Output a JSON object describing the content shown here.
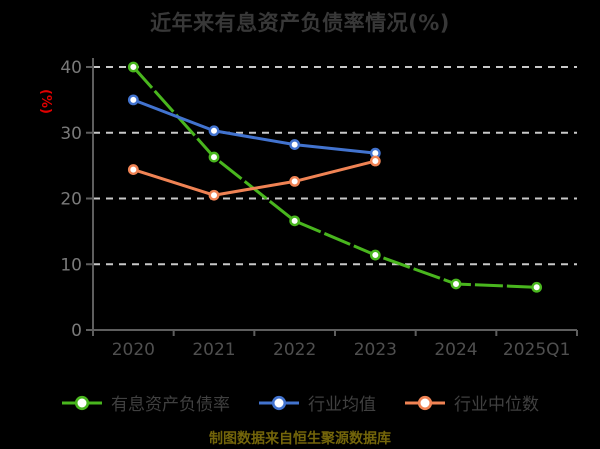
{
  "title": "近年来有息资产负债率情况(%)",
  "y_axis_label": "(%)",
  "caption": "制图数据来自恒生聚源数据库",
  "colors": {
    "background": "#000000",
    "title_text": "#383838",
    "unit_label_text": "#e00000",
    "axis_line": "#5e5e5e",
    "gridline": "#c9c9c9",
    "y_tick_label": "#7a7a7a",
    "x_tick_label": "#4f4f4f",
    "legend_text": "#404040",
    "caption_text": "#73650a",
    "marker_fill": "#ffffff",
    "series_green": "#49b61e",
    "series_blue": "#4273cf",
    "series_orange": "#f08354"
  },
  "legend": {
    "items": [
      {
        "key": "interest-bearing-debt-ratio",
        "label": "有息资产负债率",
        "color": "#49b61e"
      },
      {
        "key": "industry-mean",
        "label": "行业均值",
        "color": "#4273cf"
      },
      {
        "key": "industry-median",
        "label": "行业中位数",
        "color": "#f08354"
      }
    ]
  },
  "chart_data": {
    "type": "line",
    "title": "近年来有息资产负债率情况(%)",
    "ylabel": "(%)",
    "xlabel": "",
    "categories": [
      "2020",
      "2021",
      "2022",
      "2023",
      "2024",
      "2025Q1"
    ],
    "series": [
      {
        "key": "interest-bearing-debt-ratio",
        "name": "有息资产负债率",
        "color": "#49b61e",
        "line_style": "long-dash",
        "values": [
          40.0,
          26.3,
          16.6,
          11.4,
          7.0,
          6.5
        ]
      },
      {
        "key": "industry-mean",
        "name": "行业均值",
        "color": "#4273cf",
        "line_style": "solid",
        "values": [
          35.0,
          30.3,
          28.2,
          26.9,
          null,
          null
        ]
      },
      {
        "key": "industry-median",
        "name": "行业中位数",
        "color": "#f08354",
        "line_style": "solid",
        "values": [
          24.4,
          20.5,
          22.6,
          25.7,
          null,
          null
        ]
      }
    ],
    "ylim": [
      0,
      40
    ],
    "y_ticks": [
      0,
      10,
      20,
      30,
      40
    ],
    "grid": "horizontal dashed white lines at 10,20,30,40",
    "legend_position": "bottom",
    "marker": "circle, white fill, colored border"
  }
}
